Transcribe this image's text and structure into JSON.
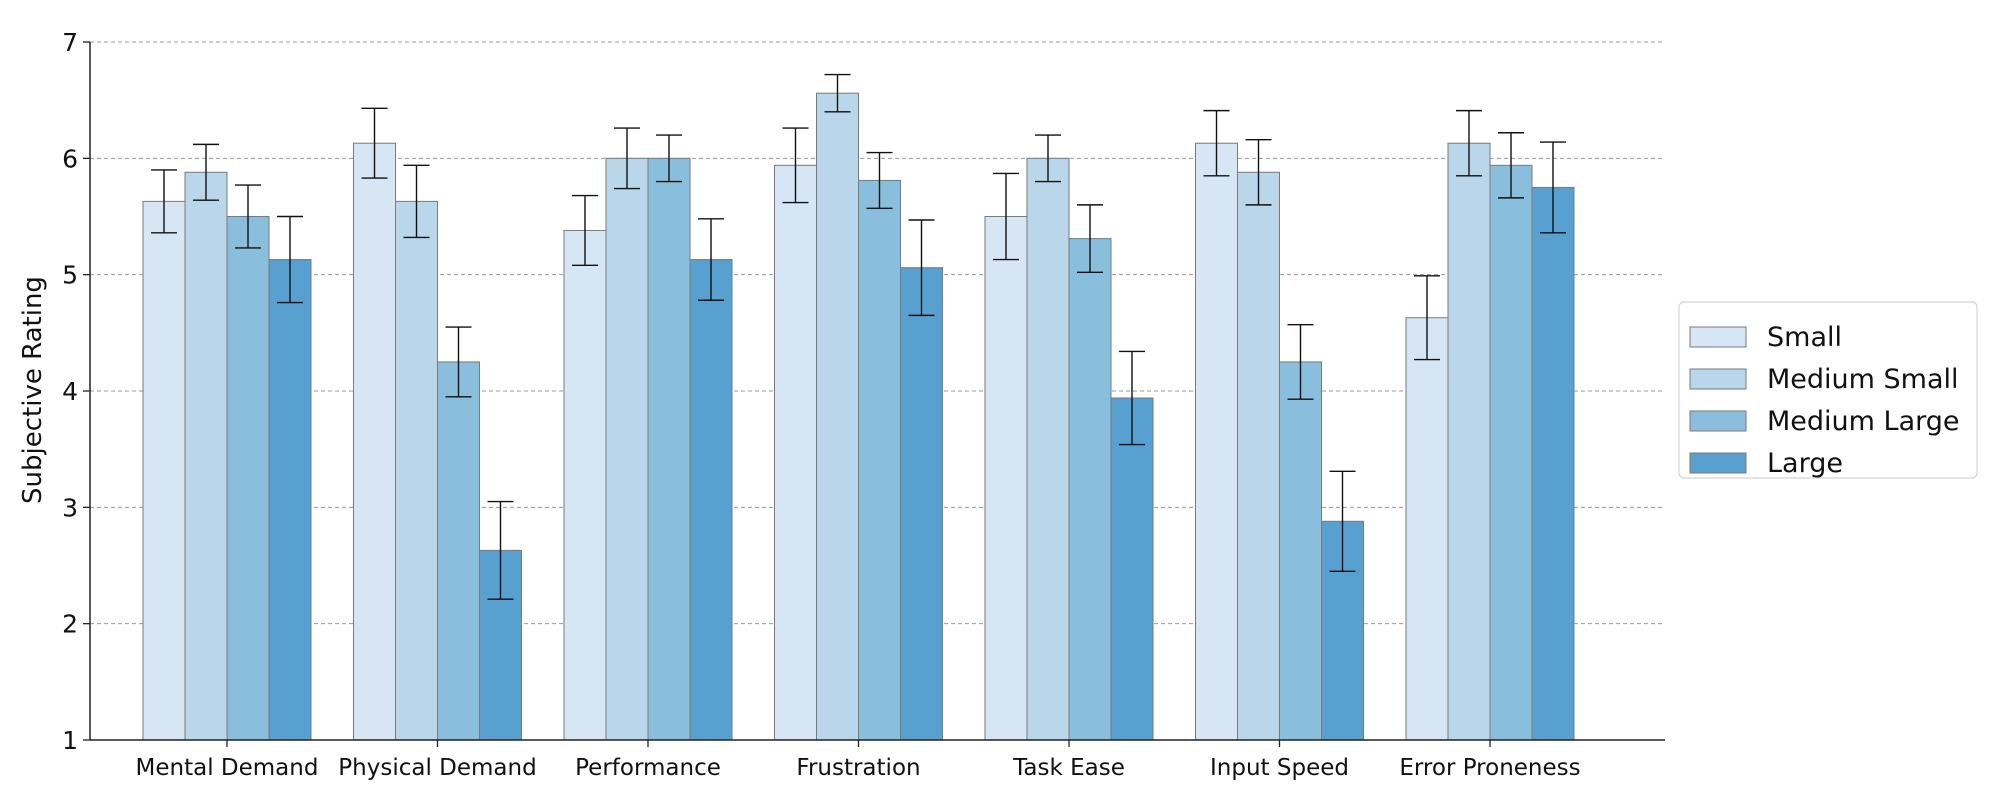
{
  "chart_data": {
    "type": "bar",
    "title": "",
    "xlabel": "",
    "ylabel": "Subjective Rating",
    "ylim": [
      1,
      7
    ],
    "yticks": [
      1,
      2,
      3,
      4,
      5,
      6,
      7
    ],
    "grid": true,
    "legend_position": "right",
    "categories": [
      "Mental Demand",
      "Physical Demand",
      "Performance",
      "Frustration",
      "Task Ease",
      "Input Speed",
      "Error Proneness"
    ],
    "series": [
      {
        "name": "Small",
        "color": "#d6e6f4",
        "values": [
          5.63,
          6.13,
          5.38,
          5.94,
          5.5,
          6.13,
          4.63
        ],
        "errors": [
          0.27,
          0.3,
          0.3,
          0.32,
          0.37,
          0.28,
          0.36
        ]
      },
      {
        "name": "Medium Small",
        "color": "#bad6eb",
        "values": [
          5.88,
          5.63,
          6.0,
          6.56,
          6.0,
          5.88,
          6.13
        ],
        "errors": [
          0.24,
          0.31,
          0.26,
          0.16,
          0.2,
          0.28,
          0.28
        ]
      },
      {
        "name": "Medium Large",
        "color": "#89bedc",
        "values": [
          5.5,
          4.25,
          6.0,
          5.81,
          5.31,
          4.25,
          5.94
        ],
        "errors": [
          0.27,
          0.3,
          0.2,
          0.24,
          0.29,
          0.32,
          0.28
        ]
      },
      {
        "name": "Large",
        "color": "#57a0d0",
        "values": [
          5.13,
          2.63,
          5.13,
          5.06,
          3.94,
          2.88,
          5.75
        ],
        "errors": [
          0.37,
          0.42,
          0.35,
          0.41,
          0.4,
          0.43,
          0.39
        ]
      }
    ]
  }
}
